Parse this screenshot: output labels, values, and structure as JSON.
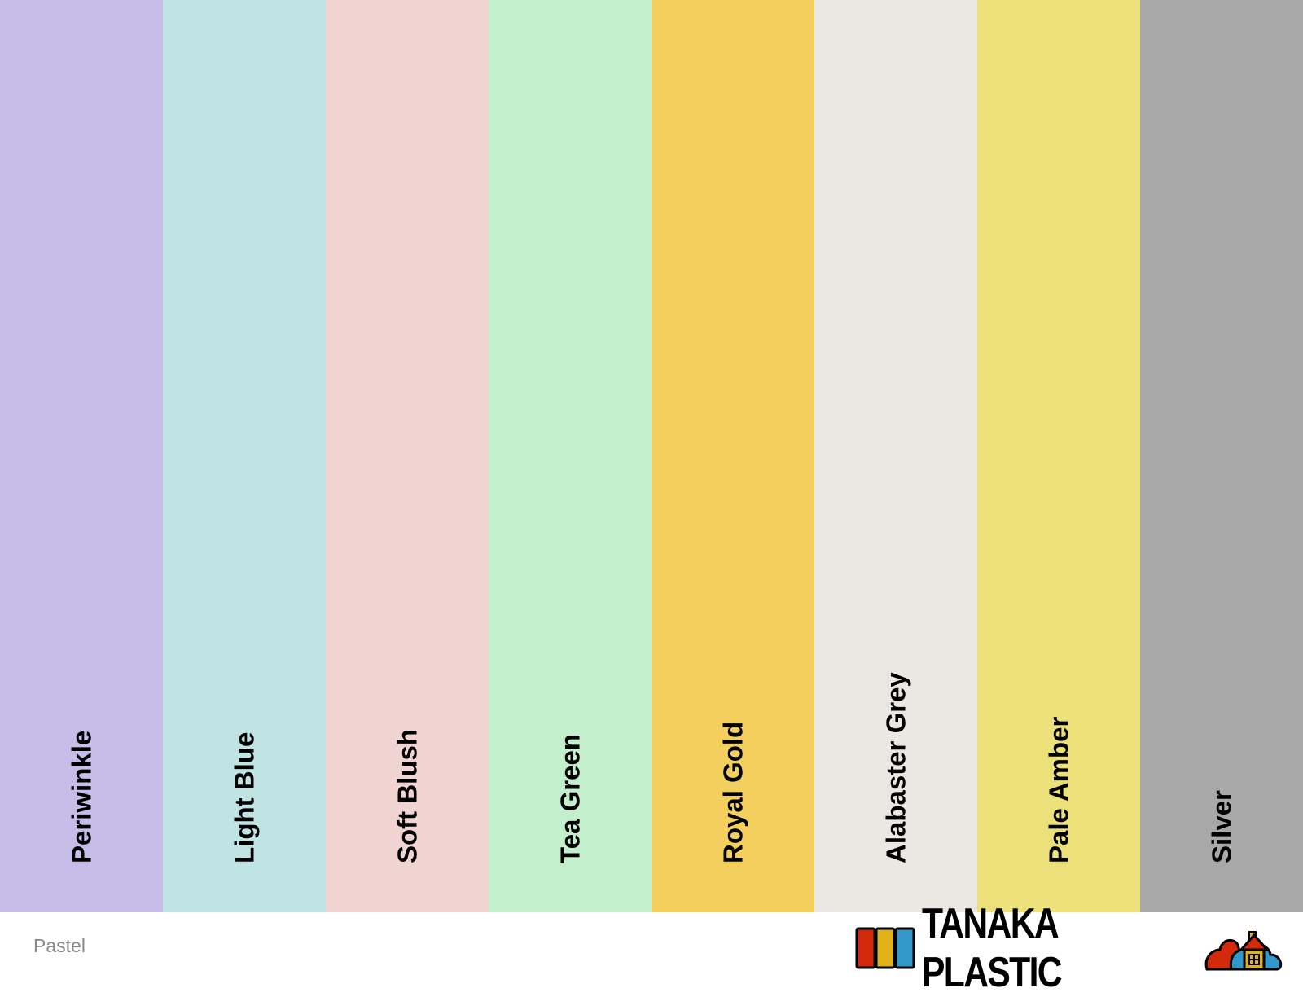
{
  "palette_name": "Pastel",
  "swatches": [
    {
      "name": "Periwinkle",
      "color": "#c6bde8"
    },
    {
      "name": "Light Blue",
      "color": "#c0e3e3"
    },
    {
      "name": "Soft Blush",
      "color": "#f0d4d2"
    },
    {
      "name": "Tea Green",
      "color": "#c3efcd"
    },
    {
      "name": "Royal Gold",
      "color": "#f3d05e"
    },
    {
      "name": "Alabaster Grey",
      "color": "#ebe8e4"
    },
    {
      "name": "Pale Amber",
      "color": "#ebe07a"
    },
    {
      "name": "Silver",
      "color": "#a8a8a8"
    }
  ],
  "logo": {
    "text": "TANAKA PLASTIC",
    "colors": [
      "#d22a0a",
      "#e0b21a",
      "#3399cc"
    ]
  }
}
